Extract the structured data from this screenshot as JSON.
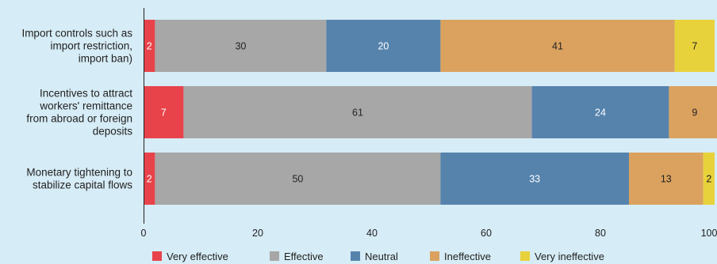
{
  "chart_data": {
    "type": "bar",
    "orientation": "horizontal",
    "stacked": true,
    "title": "",
    "xlabel": "",
    "ylabel": "",
    "xlim": [
      0,
      100
    ],
    "ticks": [
      0,
      20,
      40,
      60,
      80,
      100
    ],
    "grid": false,
    "legend_position": "bottom",
    "categories": [
      [
        "Import controls  such as",
        "import restriction,",
        "import ban)"
      ],
      [
        "Incentives to attract",
        "workers' remittance",
        "from abroad or foreign",
        "deposits"
      ],
      [
        "Monetary tightening to",
        "stabilize capital flows"
      ]
    ],
    "series": [
      {
        "name": "Very effective",
        "color": "#e8434a",
        "label_color": "#ffffff",
        "values": [
          2,
          7,
          2
        ]
      },
      {
        "name": "Effective",
        "color": "#a7a7a7",
        "label_color": "#222222",
        "values": [
          30,
          61,
          50
        ]
      },
      {
        "name": "Neutral",
        "color": "#5583ac",
        "label_color": "#ffffff",
        "values": [
          20,
          24,
          33
        ]
      },
      {
        "name": "Ineffective",
        "color": "#dba25f",
        "label_color": "#222222",
        "values": [
          41,
          9,
          13
        ]
      },
      {
        "name": "Very ineffective",
        "color": "#e8d23b",
        "label_color": "#222222",
        "values": [
          7,
          0,
          2
        ]
      }
    ]
  }
}
